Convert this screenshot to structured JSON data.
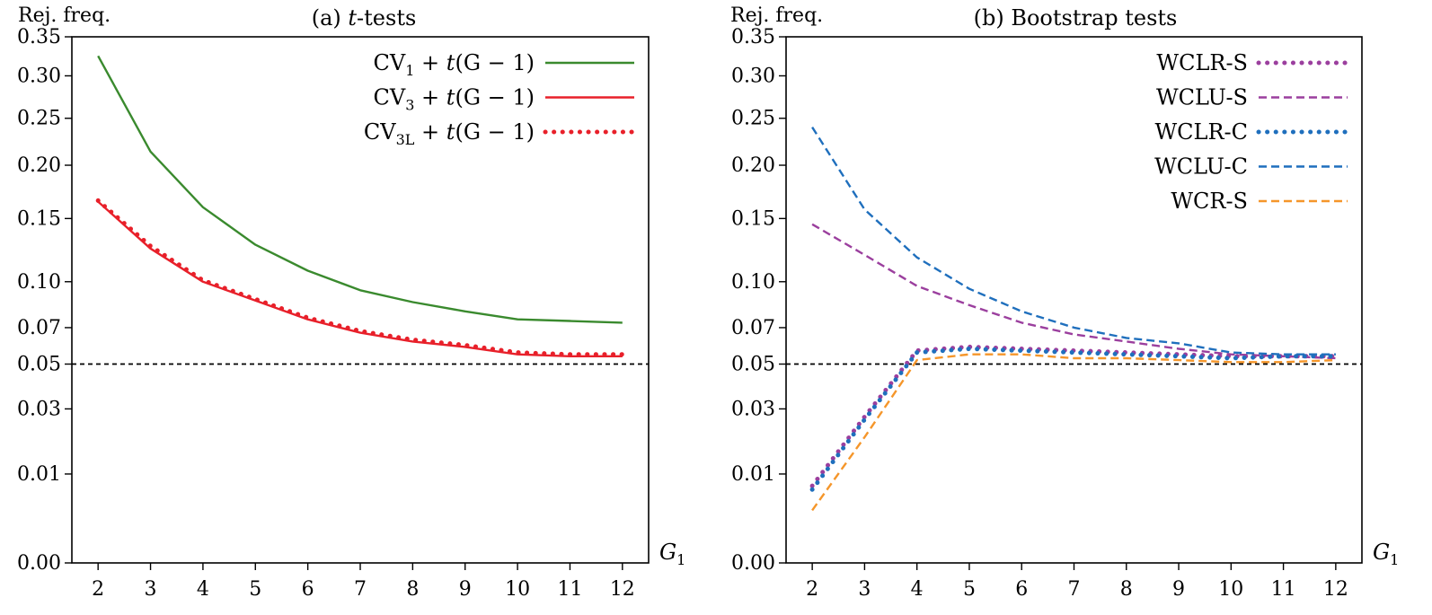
{
  "chart_data": [
    {
      "type": "line",
      "title_prefix": "(a) ",
      "title_italic": "t",
      "title_suffix": "-tests",
      "ylabel": "Rej. freq.",
      "xlabel": "G",
      "xlabel_sub": "1",
      "x": [
        2,
        3,
        4,
        5,
        6,
        7,
        8,
        9,
        10,
        11,
        12
      ],
      "xlim": [
        1.5,
        12.5
      ],
      "ylim": [
        0,
        0.35
      ],
      "yscale": "sqrt",
      "yticks": [
        0.0,
        0.01,
        0.03,
        0.05,
        0.07,
        0.1,
        0.15,
        0.2,
        0.25,
        0.3,
        0.35
      ],
      "ytick_labels": [
        "0.00",
        "0.01",
        "0.03",
        "0.05",
        "0.07",
        "0.10",
        "0.15",
        "0.20",
        "0.25",
        "0.30",
        "0.35"
      ],
      "reference_line": 0.05,
      "legend_position": "top-right",
      "series": [
        {
          "name_main": "CV",
          "name_sub": "1",
          "name_tail": " + ",
          "name_italic": "t",
          "name_args": "(G − 1)",
          "color": "#3a8a2e",
          "style": "solid",
          "values": [
            0.325,
            0.214,
            0.16,
            0.128,
            0.108,
            0.094,
            0.086,
            0.08,
            0.075,
            0.074,
            0.073
          ]
        },
        {
          "name_main": "CV",
          "name_sub": "3",
          "name_tail": " + ",
          "name_italic": "t",
          "name_args": "(G − 1)",
          "color": "#e8202a",
          "style": "solid",
          "values": [
            0.165,
            0.125,
            0.1,
            0.087,
            0.075,
            0.067,
            0.062,
            0.059,
            0.055,
            0.054,
            0.054
          ]
        },
        {
          "name_main": "CV",
          "name_sub": "3L",
          "name_tail": " + ",
          "name_italic": "t",
          "name_args": "(G − 1)",
          "color": "#e8202a",
          "style": "dotted",
          "values": [
            0.166,
            0.127,
            0.101,
            0.088,
            0.076,
            0.068,
            0.063,
            0.06,
            0.056,
            0.055,
            0.055
          ]
        }
      ]
    },
    {
      "type": "line",
      "title_prefix": "(b) Bootstrap tests",
      "title_italic": "",
      "title_suffix": "",
      "ylabel": "Rej. freq.",
      "xlabel": "G",
      "xlabel_sub": "1",
      "x": [
        2,
        3,
        4,
        5,
        6,
        7,
        8,
        9,
        10,
        11,
        12
      ],
      "xlim": [
        1.5,
        12.5
      ],
      "ylim": [
        0,
        0.35
      ],
      "yscale": "sqrt",
      "yticks": [
        0.0,
        0.01,
        0.03,
        0.05,
        0.07,
        0.1,
        0.15,
        0.2,
        0.25,
        0.3,
        0.35
      ],
      "ytick_labels": [
        "0.00",
        "0.01",
        "0.03",
        "0.05",
        "0.07",
        "0.10",
        "0.15",
        "0.20",
        "0.25",
        "0.30",
        "0.35"
      ],
      "reference_line": 0.05,
      "legend_position": "top-right",
      "series": [
        {
          "name_main": "WCLR-S",
          "color": "#9b3f9e",
          "style": "dotted",
          "values": [
            0.0075,
            0.027,
            0.057,
            0.059,
            0.058,
            0.057,
            0.056,
            0.055,
            0.054,
            0.054,
            0.054
          ]
        },
        {
          "name_main": "WCLU-S",
          "color": "#9b3f9e",
          "style": "dashed",
          "values": [
            0.145,
            0.12,
            0.097,
            0.084,
            0.073,
            0.066,
            0.062,
            0.058,
            0.055,
            0.054,
            0.053
          ]
        },
        {
          "name_main": "WCLR-C",
          "color": "#1f6fbd",
          "style": "dotted",
          "values": [
            0.0068,
            0.026,
            0.056,
            0.058,
            0.057,
            0.056,
            0.055,
            0.054,
            0.053,
            0.054,
            0.054
          ]
        },
        {
          "name_main": "WCLU-C",
          "color": "#1f6fbd",
          "style": "dashed",
          "values": [
            0.24,
            0.158,
            0.118,
            0.095,
            0.08,
            0.07,
            0.064,
            0.061,
            0.056,
            0.055,
            0.055
          ]
        },
        {
          "name_main": "WCR-S",
          "color": "#f5962a",
          "style": "dashed",
          "values": [
            0.0035,
            0.02,
            0.052,
            0.055,
            0.055,
            0.053,
            0.053,
            0.052,
            0.051,
            0.051,
            0.052
          ]
        }
      ]
    }
  ]
}
